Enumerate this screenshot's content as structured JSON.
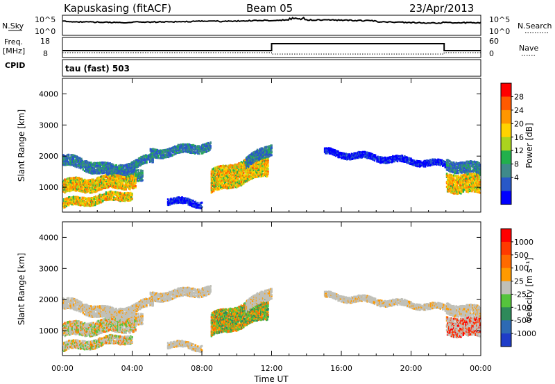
{
  "header": {
    "station": "Kapuskasing (fitACF)",
    "beam": "Beam 05",
    "date": "23/Apr/2013"
  },
  "strip": {
    "nsky_label": "N.Sky",
    "nsearch_label": "N.Search",
    "nsky_ticks": [
      "10^5",
      "10^0"
    ],
    "nsearch_ticks": [
      "10^5",
      "10^0"
    ],
    "freq_label_line1": "Freq.",
    "freq_label_line2": "[MHz]",
    "freq_ticks": [
      "18",
      "8"
    ],
    "nave_label": "Nave",
    "nave_ticks": [
      "60",
      "0"
    ],
    "cpid_label": "CPID",
    "cpid_value": "tau (fast) 503"
  },
  "chart_data": [
    {
      "type": "heatmap",
      "title": "",
      "xlabel": "",
      "ylabel": "Slant Range [km]",
      "x_ticks": [
        "00:00",
        "04:00",
        "08:00",
        "12:00",
        "16:00",
        "20:00",
        "00:00"
      ],
      "xlim_hours": [
        0,
        24
      ],
      "y_ticks": [
        1000,
        2000,
        3000,
        4000
      ],
      "ylim": [
        200,
        4500
      ],
      "colorbar": {
        "label": "Power [dB]",
        "ticks": [
          4,
          8,
          12,
          16,
          20,
          24,
          28
        ],
        "colors": [
          "#0000ff",
          "#2858c8",
          "#3f8a8a",
          "#22b04c",
          "#aad41e",
          "#ffd200",
          "#ff9600",
          "#ff5a00",
          "#ff0000"
        ]
      }
    },
    {
      "type": "heatmap",
      "title": "",
      "xlabel": "Time UT",
      "ylabel": "Slant Range [km]",
      "x_ticks": [
        "00:00",
        "04:00",
        "08:00",
        "12:00",
        "16:00",
        "20:00",
        "00:00"
      ],
      "xlim_hours": [
        0,
        24
      ],
      "y_ticks": [
        1000,
        2000,
        3000,
        4000
      ],
      "ylim": [
        200,
        4500
      ],
      "colorbar": {
        "label": "Velocity [m s⁻¹]",
        "ticks": [
          "1000",
          "500",
          "100",
          "25",
          "-25",
          "-100",
          "-500",
          "-1000"
        ],
        "colors": [
          "#1e3cc8",
          "#2d6ab4",
          "#2e8a5a",
          "#55c43c",
          "#c0c0b8",
          "#ff9a00",
          "#ff6a00",
          "#ff3a00",
          "#ff0000"
        ]
      }
    }
  ]
}
